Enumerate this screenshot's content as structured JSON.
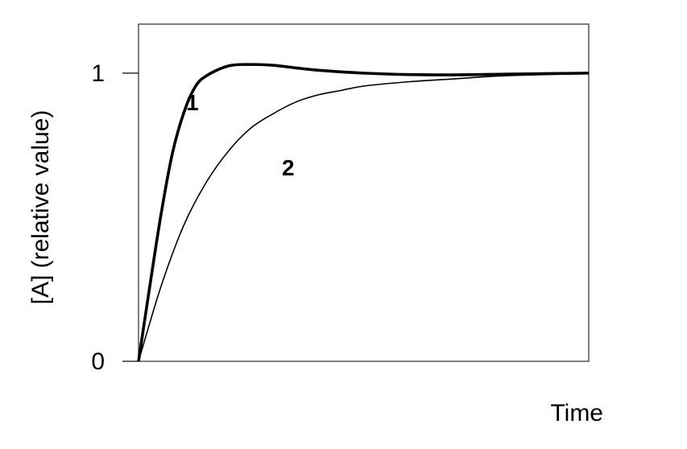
{
  "chart_data": {
    "type": "line",
    "title": "",
    "xlabel": "Time",
    "ylabel": "[A] (relative value)",
    "xlim": [
      0,
      10
    ],
    "ylim": [
      0,
      1.17
    ],
    "yticks": [
      {
        "value": 0,
        "label": "0"
      },
      {
        "value": 1,
        "label": "1"
      }
    ],
    "xticks": [],
    "grid": false,
    "legend": "none",
    "series": [
      {
        "name": "1",
        "color": "#000000",
        "style": "thick",
        "x": [
          0,
          0.25,
          0.5,
          0.75,
          1.0,
          1.25,
          1.5,
          2.0,
          2.5,
          3.0,
          3.5,
          4.0,
          5.0,
          6.0,
          7.0,
          8.0,
          9.0,
          10.0
        ],
        "y": [
          0,
          0.26,
          0.51,
          0.72,
          0.86,
          0.95,
          0.99,
          1.025,
          1.03,
          1.027,
          1.018,
          1.01,
          1.0,
          0.995,
          0.994,
          0.996,
          0.998,
          1.0
        ]
      },
      {
        "name": "2",
        "color": "#000000",
        "style": "thin",
        "x": [
          0,
          0.5,
          1.0,
          1.5,
          2.0,
          2.5,
          3.0,
          3.5,
          4.0,
          4.5,
          5.0,
          6.0,
          7.0,
          8.0,
          9.0,
          10.0
        ],
        "y": [
          0,
          0.26,
          0.47,
          0.62,
          0.73,
          0.81,
          0.86,
          0.9,
          0.925,
          0.94,
          0.955,
          0.97,
          0.98,
          0.99,
          0.995,
          1.0
        ]
      }
    ]
  }
}
